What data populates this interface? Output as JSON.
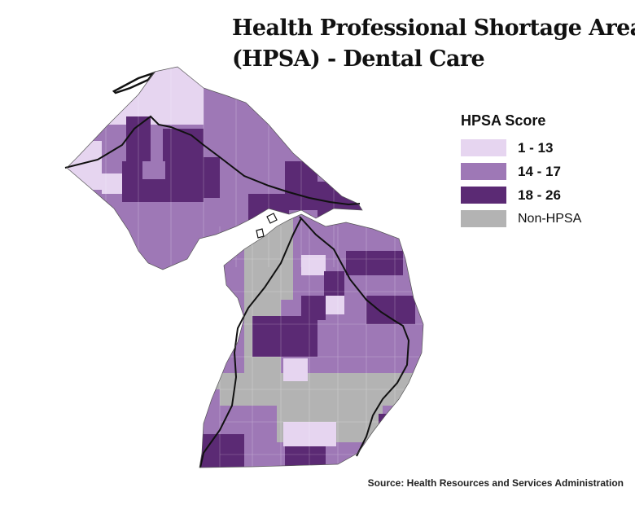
{
  "title": {
    "line1": "Health Professional Shortage Area",
    "line2": "(HPSA) - Dental Care"
  },
  "legend": {
    "title": "HPSA Score",
    "items": [
      {
        "label": "1 - 13",
        "color": "#e6d5f0"
      },
      {
        "label": "14 - 17",
        "color": "#9e78b6"
      },
      {
        "label": "18 - 26",
        "color": "#5b2a74"
      },
      {
        "label": "Non-HPSA",
        "color": "#b3b3b3"
      }
    ]
  },
  "source": "Source: Health Resources and Services Administration",
  "colors": {
    "low": "#e6d5f0",
    "mid": "#9e78b6",
    "high": "#5b2a74",
    "none": "#b3b3b3",
    "outline": "#111111"
  }
}
